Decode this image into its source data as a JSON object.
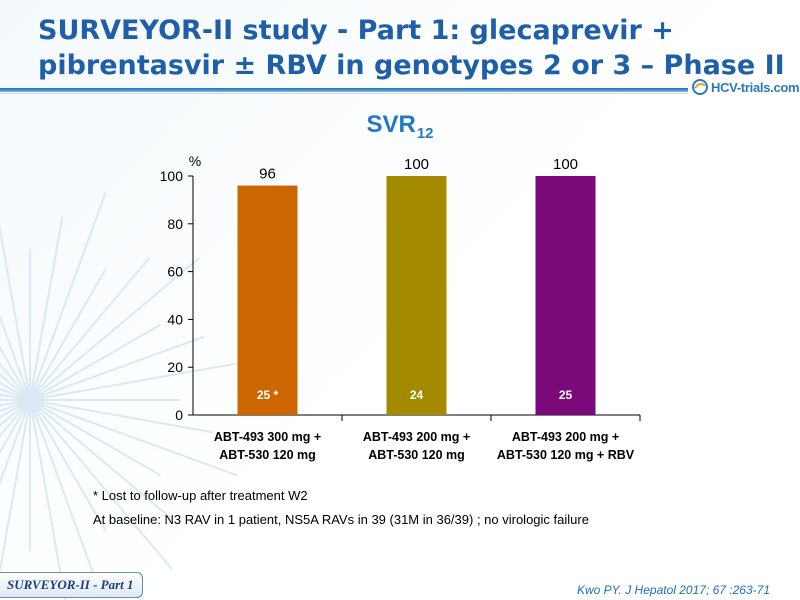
{
  "slide": {
    "title": "SURVEYOR-II study - Part 1: glecaprevir + pibrentasvir ± RBV in genotypes 2 or 3 – Phase II",
    "logo_text": "HCV-trials.com",
    "footer_tag": "SURVEYOR-II - Part 1",
    "reference": "Kwo PY. J Hepatol 2017; 67 :263-71",
    "notes": [
      "* Lost to follow-up after treatment W2",
      "At baseline: N3 RAV in 1 patient, NS5A RAVs in 39 (31M in 36/39) ; no virologic failure"
    ],
    "colors": {
      "title": "#1f5fa8",
      "accent": "#2479c7"
    }
  },
  "chart_data": {
    "type": "bar",
    "title_main": "SVR",
    "title_sub": "12",
    "ylabel": "%",
    "ylim": [
      0,
      100
    ],
    "yticks": [
      0,
      20,
      40,
      60,
      80,
      100
    ],
    "grid": false,
    "categories": [
      [
        "ABT-493 300 mg +",
        "ABT-530 120 mg"
      ],
      [
        "ABT-493 200 mg +",
        "ABT-530 120 mg"
      ],
      [
        "ABT-493 200 mg +",
        "ABT-530 120 mg + RBV"
      ]
    ],
    "values": [
      96,
      100,
      100
    ],
    "value_labels": [
      "96",
      "100",
      "100"
    ],
    "n_labels": [
      "25 *",
      "24",
      "25"
    ],
    "colors": [
      "#cc6600",
      "#a38a00",
      "#7a0a7a"
    ]
  }
}
